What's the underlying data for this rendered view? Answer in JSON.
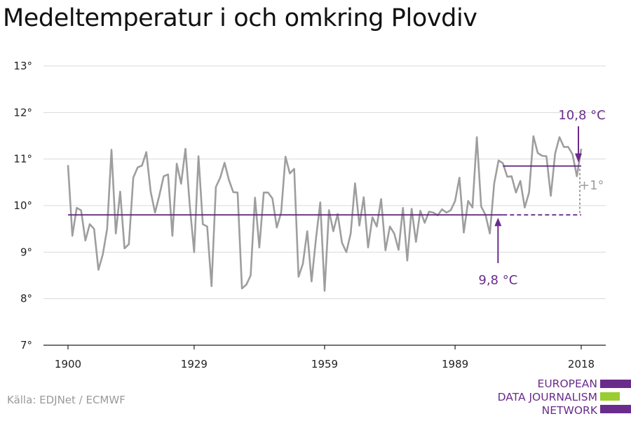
{
  "title": "Medeltemperatur i och omkring Plovdiv",
  "source": "Källa: EDJNet / ECMWF",
  "logo": {
    "lines": [
      "EUROPEAN",
      "DATA JOURNALISM",
      "NETWORK"
    ],
    "colors": {
      "text": "#6a2c8c",
      "bar_purple": "#6a2c8c",
      "bar_green": "#9acd32"
    }
  },
  "colors": {
    "series": "#9e9e9e",
    "average": "#5b1f7a",
    "anno_purple": "#6a2c8c",
    "diff": "#9e9e9e",
    "grid": "#d9d9d9",
    "axis": "#222222"
  },
  "chart_data": {
    "type": "line",
    "title": "Medeltemperatur i och omkring Plovdiv",
    "xlabel": "",
    "ylabel": "",
    "xlim": [
      1900,
      2018
    ],
    "ylim": [
      7,
      13
    ],
    "x_ticks": [
      1900,
      1929,
      1959,
      1989,
      2018
    ],
    "y_ticks": [
      7,
      8,
      9,
      10,
      11,
      12,
      13
    ],
    "y_tick_labels": [
      "7°",
      "8°",
      "9°",
      "10°",
      "11°",
      "12°",
      "13°"
    ],
    "grid": true,
    "series": [
      {
        "x": [
          1900,
          1901,
          1902,
          1903,
          1904,
          1905,
          1906,
          1907,
          1908,
          1909,
          1910,
          1911,
          1912,
          1913,
          1914,
          1915,
          1916,
          1917,
          1918,
          1919,
          1920,
          1921,
          1922,
          1923,
          1924,
          1925,
          1926,
          1927,
          1928,
          1929,
          1930,
          1931,
          1932,
          1933,
          1934,
          1935,
          1936,
          1937,
          1938,
          1939,
          1940,
          1941,
          1942,
          1943,
          1944,
          1945,
          1946,
          1947,
          1948,
          1949,
          1950,
          1951,
          1952,
          1953,
          1954,
          1955,
          1956,
          1957,
          1958,
          1959,
          1960,
          1961,
          1962,
          1963,
          1964,
          1965,
          1966,
          1967,
          1968,
          1969,
          1970,
          1971,
          1972,
          1973,
          1974,
          1975,
          1976,
          1977,
          1978,
          1979,
          1980,
          1981,
          1982,
          1983,
          1984,
          1985,
          1986,
          1987,
          1988,
          1989,
          1990,
          1991,
          1992,
          1993,
          1994,
          1995,
          1996,
          1997,
          1998,
          1999,
          2000,
          2001,
          2002,
          2003,
          2004,
          2005,
          2006,
          2007,
          2008,
          2009,
          2010,
          2011,
          2012,
          2013,
          2014,
          2015,
          2016,
          2017,
          2018
        ],
        "y": [
          10.87,
          9.35,
          9.95,
          9.9,
          9.25,
          9.6,
          9.5,
          8.62,
          8.95,
          9.5,
          11.2,
          9.4,
          10.3,
          9.08,
          9.17,
          10.6,
          10.82,
          10.86,
          11.15,
          10.3,
          9.85,
          10.22,
          10.63,
          10.67,
          9.35,
          10.9,
          10.47,
          11.22,
          10.0,
          9.0,
          11.06,
          9.6,
          9.55,
          8.27,
          10.4,
          10.6,
          10.92,
          10.55,
          10.29,
          10.28,
          8.22,
          8.3,
          8.5,
          10.17,
          9.1,
          10.28,
          10.28,
          10.15,
          9.53,
          9.85,
          11.05,
          10.69,
          10.79,
          8.47,
          8.75,
          9.45,
          8.37,
          9.28,
          10.07,
          8.17,
          9.9,
          9.45,
          9.82,
          9.2,
          9.0,
          9.4,
          10.48,
          9.57,
          10.18,
          9.1,
          9.75,
          9.55,
          10.14,
          9.04,
          9.55,
          9.4,
          9.05,
          9.95,
          8.82,
          9.93,
          9.22,
          9.89,
          9.63,
          9.87,
          9.85,
          9.79,
          9.92,
          9.85,
          9.9,
          10.1,
          10.6,
          9.42,
          10.1,
          9.96,
          11.47,
          9.98,
          9.8,
          9.4,
          10.48,
          10.97,
          10.91,
          10.62,
          10.63,
          10.28,
          10.53,
          9.96,
          10.28,
          11.49,
          11.13,
          11.07,
          11.06,
          10.21,
          11.12,
          11.47,
          11.26,
          11.26,
          11.1,
          10.63,
          11.22
        ]
      }
    ],
    "reference_lines": [
      {
        "label": "9,8 °C",
        "value": 9.8,
        "x_start": 1900,
        "x_end": 2000,
        "dashed_to": 2018
      },
      {
        "label": "10,8 °C",
        "value": 10.85,
        "x_start": 2000,
        "x_end": 2018
      }
    ],
    "annotations": {
      "diff_label": "+1°"
    }
  }
}
